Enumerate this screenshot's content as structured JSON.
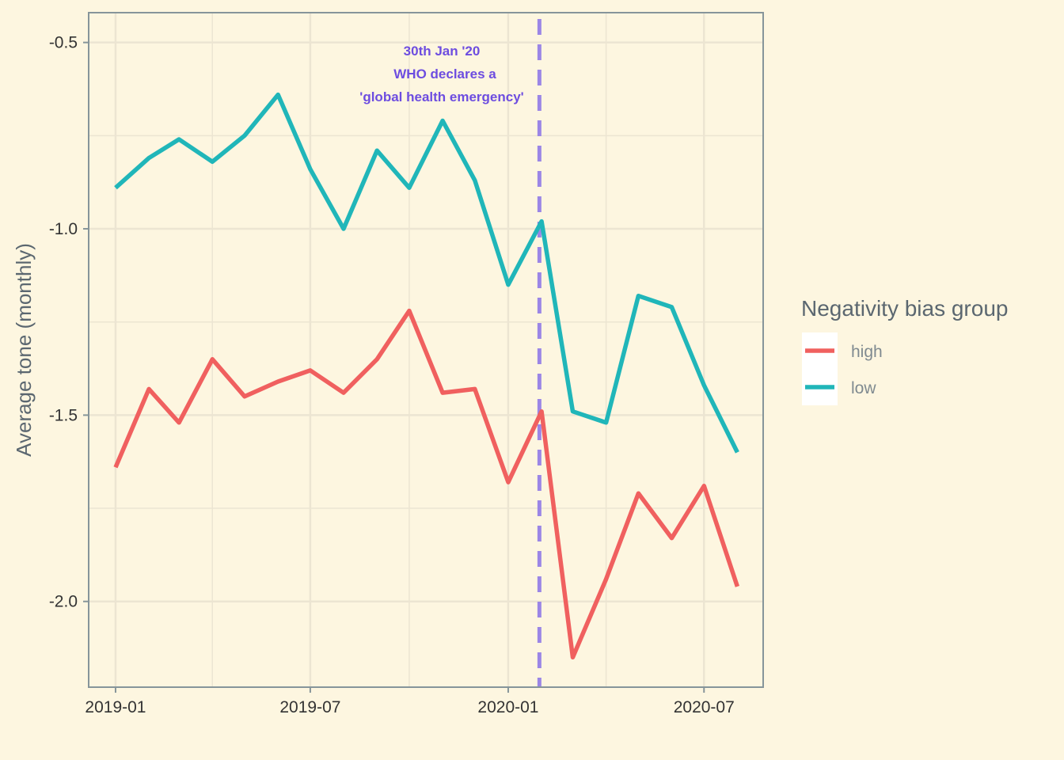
{
  "chart_data": {
    "type": "line",
    "title": "",
    "xlabel": "",
    "ylabel": "Average tone (monthly)",
    "x": [
      "2019-01-01",
      "2019-02-01",
      "2019-03-01",
      "2019-04-01",
      "2019-05-01",
      "2019-06-01",
      "2019-07-01",
      "2019-08-01",
      "2019-09-01",
      "2019-10-01",
      "2019-11-01",
      "2019-12-01",
      "2020-01-01",
      "2020-02-01",
      "2020-03-01",
      "2020-04-01",
      "2020-05-01",
      "2020-06-01",
      "2020-07-01",
      "2020-08-01"
    ],
    "series": [
      {
        "name": "high",
        "color": "#f0605f",
        "values": [
          -1.64,
          -1.43,
          -1.52,
          -1.35,
          -1.45,
          -1.41,
          -1.38,
          -1.44,
          -1.35,
          -1.22,
          -1.44,
          -1.43,
          -1.68,
          -1.49,
          -2.15,
          -1.94,
          -1.71,
          -1.83,
          -1.69,
          -1.96
        ]
      },
      {
        "name": "low",
        "color": "#20b6b9",
        "values": [
          -0.89,
          -0.81,
          -0.76,
          -0.82,
          -0.75,
          -0.64,
          -0.84,
          -1.0,
          -0.79,
          -0.89,
          -0.71,
          -0.87,
          -1.15,
          -0.98,
          -1.49,
          -1.52,
          -1.18,
          -1.21,
          -1.42,
          -1.6
        ]
      }
    ],
    "x_ticks": [
      "2019-01",
      "2019-07",
      "2020-01",
      "2020-07"
    ],
    "y_ticks": [
      "-0.5",
      "-1.0",
      "-1.5",
      "-2.0"
    ],
    "xlim": [
      "2018-12-07",
      "2020-08-25"
    ],
    "ylim": [
      -2.23,
      -0.42
    ],
    "grid": true,
    "vline": {
      "date": "2020-01-30",
      "color": "#9b86e6",
      "style": "dashed",
      "label_lines": [
        "30th Jan '20",
        "WHO declares a",
        "'global health emergency'"
      ]
    },
    "legend": {
      "title": "Negativity bias group",
      "placement": "right"
    },
    "background_color": "#fdf6e0",
    "grid_color": "#ece5d2",
    "border_color": "#86959a"
  }
}
